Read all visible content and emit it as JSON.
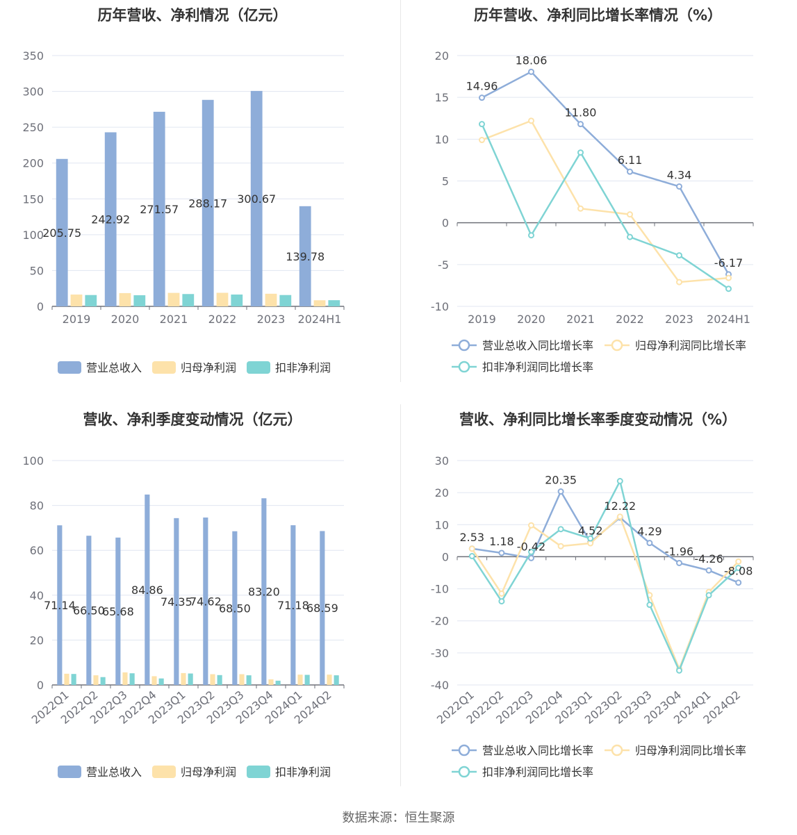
{
  "source": "数据来源：恒生聚源",
  "colors": {
    "revenue": "#8eadd9",
    "net_profit": "#fde2aa",
    "deducted_profit": "#7fd4d4",
    "axis": "#6e7079",
    "grid": "#e0e6f1",
    "label": "#333333"
  },
  "chart_data": [
    {
      "type": "bar",
      "title": "历年营收、净利情况（亿元）",
      "categories": [
        "2019",
        "2020",
        "2021",
        "2022",
        "2023",
        "2024H1"
      ],
      "ylim": [
        0,
        350
      ],
      "yticks": [
        0,
        50,
        100,
        150,
        200,
        250,
        300,
        350
      ],
      "series": [
        {
          "name": "营业总收入",
          "values": [
            205.75,
            242.92,
            271.57,
            288.17,
            300.67,
            139.78
          ],
          "labels": [
            "205.75",
            "242.92",
            "271.57",
            "288.17",
            "300.67",
            "139.78"
          ]
        },
        {
          "name": "归母净利润",
          "values": [
            16.5,
            18.5,
            18.8,
            18.9,
            17.6,
            8.5
          ]
        },
        {
          "name": "扣非净利润",
          "values": [
            15.8,
            15.5,
            17.2,
            16.5,
            15.8,
            8.6
          ]
        }
      ],
      "legend": "bottom"
    },
    {
      "type": "line",
      "title": "历年营收、净利同比增长率情况（%）",
      "categories": [
        "2019",
        "2020",
        "2021",
        "2022",
        "2023",
        "2024H1"
      ],
      "ylim": [
        -10,
        20
      ],
      "yticks": [
        -10,
        -5,
        0,
        5,
        10,
        15,
        20
      ],
      "series": [
        {
          "name": "营业总收入同比增长率",
          "values": [
            14.96,
            18.06,
            11.8,
            6.11,
            4.34,
            -6.17
          ],
          "labels": [
            "14.96",
            "18.06",
            "11.80",
            "6.11",
            "4.34",
            "-6.17"
          ]
        },
        {
          "name": "归母净利润同比增长率",
          "values": [
            9.9,
            12.2,
            1.7,
            1.0,
            -7.1,
            -6.6
          ]
        },
        {
          "name": "扣非净利润同比增长率",
          "values": [
            11.8,
            -1.5,
            8.4,
            -1.7,
            -3.9,
            -7.9
          ]
        }
      ],
      "legend": "bottom"
    },
    {
      "type": "bar",
      "title": "营收、净利季度变动情况（亿元）",
      "categories": [
        "2022Q1",
        "2022Q2",
        "2022Q3",
        "2022Q4",
        "2023Q1",
        "2023Q2",
        "2023Q3",
        "2023Q4",
        "2024Q1",
        "2024Q2"
      ],
      "ylim": [
        0,
        100
      ],
      "yticks": [
        0,
        20,
        40,
        60,
        80,
        100
      ],
      "series": [
        {
          "name": "营业总收入",
          "values": [
            71.14,
            66.5,
            65.68,
            84.86,
            74.35,
            74.62,
            68.5,
            83.2,
            71.18,
            68.59
          ],
          "labels": [
            "71.14",
            "66.50",
            "65.68",
            "84.86",
            "74.35",
            "74.62",
            "68.50",
            "83.20",
            "71.18",
            "68.59"
          ]
        },
        {
          "name": "归母净利润",
          "values": [
            5.0,
            4.3,
            5.6,
            3.9,
            5.3,
            4.8,
            4.8,
            2.5,
            4.6,
            4.6
          ]
        },
        {
          "name": "扣非净利润",
          "values": [
            4.9,
            3.5,
            5.2,
            2.9,
            5.1,
            4.4,
            4.3,
            1.9,
            4.5,
            4.3
          ]
        }
      ],
      "legend": "bottom"
    },
    {
      "type": "line",
      "title": "营收、净利同比增长率季度变动情况（%）",
      "categories": [
        "2022Q1",
        "2022Q2",
        "2022Q3",
        "2022Q4",
        "2023Q1",
        "2023Q2",
        "2023Q3",
        "2023Q4",
        "2024Q1",
        "2024Q2"
      ],
      "ylim": [
        -40,
        30
      ],
      "yticks": [
        -40,
        -30,
        -20,
        -10,
        0,
        10,
        20,
        30
      ],
      "series": [
        {
          "name": "营业总收入同比增长率",
          "values": [
            2.53,
            1.18,
            -0.42,
            20.35,
            4.52,
            12.22,
            4.29,
            -1.96,
            -4.26,
            -8.08
          ],
          "labels": [
            "2.53",
            "1.18",
            "-0.42",
            "20.35",
            "4.52",
            "12.22",
            "4.29",
            "-1.96",
            "-4.26",
            "-8.08"
          ]
        },
        {
          "name": "归母净利润同比增长率",
          "values": [
            2.5,
            -11.5,
            9.8,
            3.3,
            4.2,
            12.5,
            -12.0,
            -35.0,
            -11.0,
            -1.5
          ]
        },
        {
          "name": "扣非净利润同比增长率",
          "values": [
            0.2,
            -13.9,
            1.5,
            8.6,
            5.7,
            23.6,
            -15.0,
            -35.5,
            -12.0,
            -3.5
          ]
        }
      ],
      "legend": "bottom"
    }
  ]
}
